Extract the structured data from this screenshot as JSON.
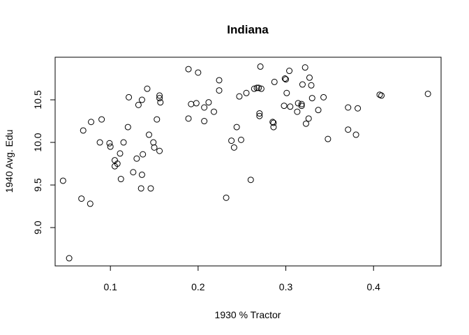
{
  "chart_data": {
    "type": "scatter",
    "title": "Indiana",
    "xlabel": "1930 % Tractor",
    "ylabel": "1940 Avg. Edu",
    "xlim": [
      0.037,
      0.477
    ],
    "ylim": [
      8.55,
      11.0
    ],
    "xticks": [
      0.1,
      0.2,
      0.3,
      0.4
    ],
    "xtick_labels": [
      "0.1",
      "0.2",
      "0.3",
      "0.4"
    ],
    "yticks": [
      9.0,
      9.5,
      10.0,
      10.5
    ],
    "ytick_labels": [
      "9.0",
      "9.5",
      "10.0",
      "10.5"
    ],
    "grid": false,
    "points": [
      {
        "x": 0.046,
        "y": 9.55
      },
      {
        "x": 0.053,
        "y": 8.64
      },
      {
        "x": 0.067,
        "y": 9.34
      },
      {
        "x": 0.069,
        "y": 10.14
      },
      {
        "x": 0.077,
        "y": 9.28
      },
      {
        "x": 0.078,
        "y": 10.24
      },
      {
        "x": 0.088,
        "y": 10.0
      },
      {
        "x": 0.09,
        "y": 10.27
      },
      {
        "x": 0.099,
        "y": 9.99
      },
      {
        "x": 0.1,
        "y": 9.95
      },
      {
        "x": 0.105,
        "y": 9.79
      },
      {
        "x": 0.105,
        "y": 9.72
      },
      {
        "x": 0.108,
        "y": 9.75
      },
      {
        "x": 0.111,
        "y": 9.87
      },
      {
        "x": 0.112,
        "y": 9.57
      },
      {
        "x": 0.115,
        "y": 10.0
      },
      {
        "x": 0.12,
        "y": 10.18
      },
      {
        "x": 0.121,
        "y": 10.53
      },
      {
        "x": 0.126,
        "y": 9.65
      },
      {
        "x": 0.13,
        "y": 9.81
      },
      {
        "x": 0.132,
        "y": 10.44
      },
      {
        "x": 0.135,
        "y": 9.46
      },
      {
        "x": 0.136,
        "y": 9.62
      },
      {
        "x": 0.136,
        "y": 10.5
      },
      {
        "x": 0.137,
        "y": 9.86
      },
      {
        "x": 0.142,
        "y": 10.63
      },
      {
        "x": 0.144,
        "y": 10.09
      },
      {
        "x": 0.146,
        "y": 9.46
      },
      {
        "x": 0.149,
        "y": 10.0
      },
      {
        "x": 0.15,
        "y": 9.94
      },
      {
        "x": 0.153,
        "y": 10.27
      },
      {
        "x": 0.156,
        "y": 9.9
      },
      {
        "x": 0.156,
        "y": 10.55
      },
      {
        "x": 0.156,
        "y": 10.52
      },
      {
        "x": 0.157,
        "y": 10.47
      },
      {
        "x": 0.189,
        "y": 10.86
      },
      {
        "x": 0.189,
        "y": 10.28
      },
      {
        "x": 0.192,
        "y": 10.45
      },
      {
        "x": 0.198,
        "y": 10.46
      },
      {
        "x": 0.2,
        "y": 10.82
      },
      {
        "x": 0.207,
        "y": 10.25
      },
      {
        "x": 0.207,
        "y": 10.41
      },
      {
        "x": 0.212,
        "y": 10.47
      },
      {
        "x": 0.218,
        "y": 10.36
      },
      {
        "x": 0.224,
        "y": 10.73
      },
      {
        "x": 0.224,
        "y": 10.61
      },
      {
        "x": 0.232,
        "y": 9.35
      },
      {
        "x": 0.238,
        "y": 10.02
      },
      {
        "x": 0.241,
        "y": 9.94
      },
      {
        "x": 0.244,
        "y": 10.18
      },
      {
        "x": 0.247,
        "y": 10.54
      },
      {
        "x": 0.249,
        "y": 10.03
      },
      {
        "x": 0.255,
        "y": 10.58
      },
      {
        "x": 0.26,
        "y": 9.56
      },
      {
        "x": 0.264,
        "y": 10.63
      },
      {
        "x": 0.267,
        "y": 10.64
      },
      {
        "x": 0.269,
        "y": 10.64
      },
      {
        "x": 0.27,
        "y": 10.31
      },
      {
        "x": 0.27,
        "y": 10.34
      },
      {
        "x": 0.271,
        "y": 10.89
      },
      {
        "x": 0.272,
        "y": 10.63
      },
      {
        "x": 0.285,
        "y": 10.24
      },
      {
        "x": 0.286,
        "y": 10.23
      },
      {
        "x": 0.286,
        "y": 10.18
      },
      {
        "x": 0.287,
        "y": 10.71
      },
      {
        "x": 0.298,
        "y": 10.43
      },
      {
        "x": 0.299,
        "y": 10.75
      },
      {
        "x": 0.3,
        "y": 10.74
      },
      {
        "x": 0.301,
        "y": 10.58
      },
      {
        "x": 0.304,
        "y": 10.84
      },
      {
        "x": 0.305,
        "y": 10.42
      },
      {
        "x": 0.313,
        "y": 10.36
      },
      {
        "x": 0.314,
        "y": 10.46
      },
      {
        "x": 0.318,
        "y": 10.43
      },
      {
        "x": 0.318,
        "y": 10.45
      },
      {
        "x": 0.319,
        "y": 10.68
      },
      {
        "x": 0.322,
        "y": 10.88
      },
      {
        "x": 0.323,
        "y": 10.22
      },
      {
        "x": 0.326,
        "y": 10.28
      },
      {
        "x": 0.327,
        "y": 10.76
      },
      {
        "x": 0.329,
        "y": 10.67
      },
      {
        "x": 0.33,
        "y": 10.52
      },
      {
        "x": 0.337,
        "y": 10.38
      },
      {
        "x": 0.343,
        "y": 10.53
      },
      {
        "x": 0.348,
        "y": 10.04
      },
      {
        "x": 0.371,
        "y": 10.41
      },
      {
        "x": 0.371,
        "y": 10.15
      },
      {
        "x": 0.38,
        "y": 10.09
      },
      {
        "x": 0.382,
        "y": 10.4
      },
      {
        "x": 0.407,
        "y": 10.56
      },
      {
        "x": 0.409,
        "y": 10.55
      },
      {
        "x": 0.462,
        "y": 10.57
      }
    ]
  }
}
